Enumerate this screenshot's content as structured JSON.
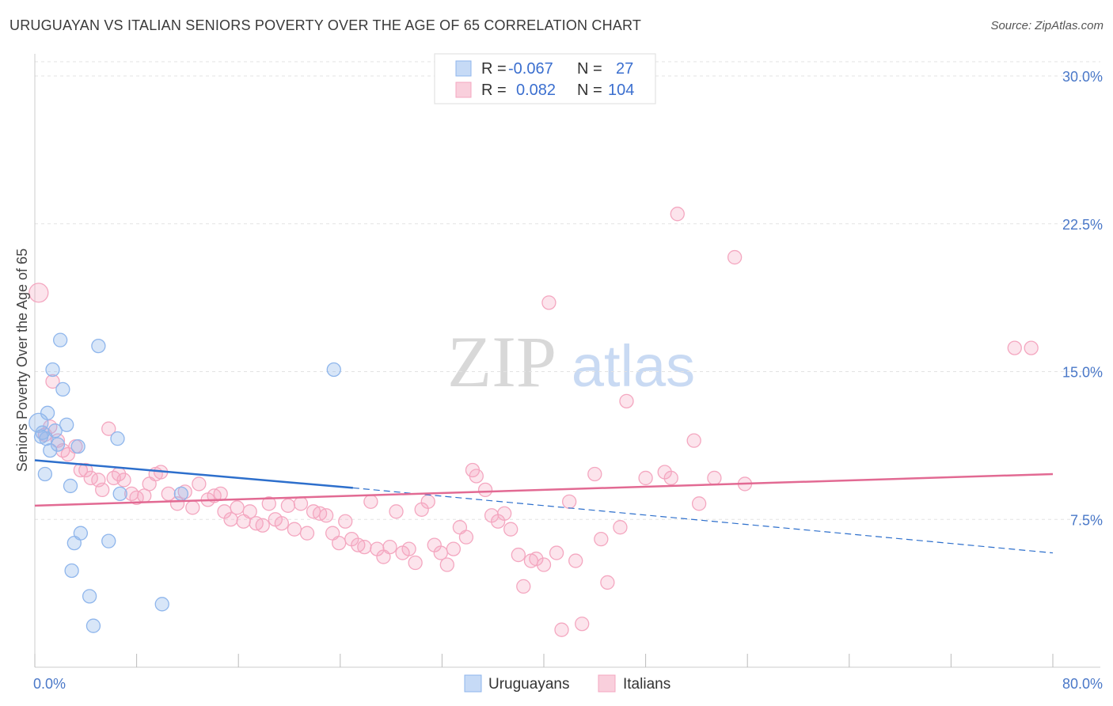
{
  "title": "URUGUAYAN VS ITALIAN SENIORS POVERTY OVER THE AGE OF 65 CORRELATION CHART",
  "source": "Source: ZipAtlas.com",
  "watermark": {
    "zip": "ZIP",
    "atlas": "atlas"
  },
  "chart_data": {
    "type": "scatter",
    "ylabel": "Seniors Poverty Over the Age of 65",
    "xlim": [
      0,
      80
    ],
    "ylim": [
      0,
      30
    ],
    "x_tick_labels": [
      "0.0%",
      "80.0%"
    ],
    "y_ticks": [
      7.5,
      15.0,
      22.5,
      30.0
    ],
    "y_tick_labels": [
      "7.5%",
      "15.0%",
      "22.5%",
      "30.0%"
    ],
    "grid": "horizontal dashed",
    "legend_position": "top-center",
    "series": [
      {
        "name": "Uruguayans",
        "color": "#8fb6ec",
        "line_color": "#2d6fcc",
        "R": "-0.067",
        "N": "27",
        "trend": {
          "x0": 0,
          "y0": 10.5,
          "x1": 25,
          "y1": 9.1,
          "dashed_to_x": 80,
          "dashed_to_y": 5.8
        },
        "points": [
          [
            0.3,
            12.4
          ],
          [
            0.5,
            11.7
          ],
          [
            0.6,
            11.9
          ],
          [
            0.8,
            9.8
          ],
          [
            1.0,
            12.9
          ],
          [
            1.2,
            11.0
          ],
          [
            1.4,
            15.1
          ],
          [
            1.6,
            12.0
          ],
          [
            1.8,
            11.3
          ],
          [
            2.0,
            16.6
          ],
          [
            2.2,
            14.1
          ],
          [
            2.5,
            12.3
          ],
          [
            2.8,
            9.2
          ],
          [
            3.1,
            6.3
          ],
          [
            3.4,
            11.2
          ],
          [
            3.6,
            6.8
          ],
          [
            2.9,
            4.9
          ],
          [
            4.3,
            3.6
          ],
          [
            4.6,
            2.1
          ],
          [
            5.0,
            16.3
          ],
          [
            5.8,
            6.4
          ],
          [
            6.5,
            11.6
          ],
          [
            6.7,
            8.8
          ],
          [
            10.0,
            3.2
          ],
          [
            11.5,
            8.8
          ],
          [
            23.5,
            15.1
          ],
          [
            0.9,
            11.6
          ]
        ]
      },
      {
        "name": "Italians",
        "color": "#f4a7c0",
        "line_color": "#e26a93",
        "R": "0.082",
        "N": "104",
        "trend": {
          "x0": 0,
          "y0": 8.2,
          "x1": 80,
          "y1": 9.8
        },
        "points": [
          [
            0.3,
            19.0
          ],
          [
            0.8,
            11.8
          ],
          [
            1.2,
            12.2
          ],
          [
            1.4,
            14.5
          ],
          [
            1.8,
            11.5
          ],
          [
            2.2,
            11.0
          ],
          [
            2.6,
            10.8
          ],
          [
            3.2,
            11.2
          ],
          [
            3.6,
            10.0
          ],
          [
            4.0,
            10.0
          ],
          [
            4.4,
            9.6
          ],
          [
            5.0,
            9.5
          ],
          [
            5.3,
            9.0
          ],
          [
            5.8,
            12.1
          ],
          [
            6.2,
            9.6
          ],
          [
            6.6,
            9.8
          ],
          [
            7.0,
            9.5
          ],
          [
            7.6,
            8.8
          ],
          [
            8.0,
            8.6
          ],
          [
            8.6,
            8.7
          ],
          [
            9.0,
            9.3
          ],
          [
            9.5,
            9.8
          ],
          [
            9.9,
            9.9
          ],
          [
            10.5,
            8.8
          ],
          [
            11.2,
            8.3
          ],
          [
            11.8,
            8.9
          ],
          [
            12.4,
            8.1
          ],
          [
            12.9,
            9.3
          ],
          [
            13.6,
            8.5
          ],
          [
            14.1,
            8.7
          ],
          [
            14.6,
            8.8
          ],
          [
            14.9,
            7.9
          ],
          [
            15.4,
            7.5
          ],
          [
            15.9,
            8.1
          ],
          [
            16.4,
            7.4
          ],
          [
            16.9,
            7.9
          ],
          [
            17.4,
            7.3
          ],
          [
            17.9,
            7.2
          ],
          [
            18.4,
            8.3
          ],
          [
            18.9,
            7.5
          ],
          [
            19.4,
            7.3
          ],
          [
            19.9,
            8.2
          ],
          [
            20.4,
            7.0
          ],
          [
            20.9,
            8.3
          ],
          [
            21.4,
            6.8
          ],
          [
            21.9,
            7.9
          ],
          [
            22.4,
            7.8
          ],
          [
            22.9,
            7.7
          ],
          [
            23.4,
            6.8
          ],
          [
            23.9,
            6.3
          ],
          [
            24.4,
            7.4
          ],
          [
            24.9,
            6.5
          ],
          [
            25.4,
            6.2
          ],
          [
            25.9,
            6.1
          ],
          [
            26.4,
            8.4
          ],
          [
            26.9,
            6.0
          ],
          [
            27.4,
            5.6
          ],
          [
            27.9,
            6.1
          ],
          [
            28.4,
            7.9
          ],
          [
            28.9,
            5.8
          ],
          [
            29.4,
            6.0
          ],
          [
            29.9,
            5.3
          ],
          [
            30.4,
            8.0
          ],
          [
            30.9,
            8.4
          ],
          [
            31.4,
            6.2
          ],
          [
            31.9,
            5.8
          ],
          [
            32.4,
            5.2
          ],
          [
            32.9,
            6.0
          ],
          [
            33.4,
            7.1
          ],
          [
            33.9,
            6.6
          ],
          [
            34.4,
            10.0
          ],
          [
            34.7,
            9.7
          ],
          [
            35.4,
            9.0
          ],
          [
            35.9,
            7.7
          ],
          [
            36.4,
            7.4
          ],
          [
            36.9,
            7.8
          ],
          [
            37.4,
            7.0
          ],
          [
            38.0,
            5.7
          ],
          [
            38.4,
            4.1
          ],
          [
            39.0,
            5.4
          ],
          [
            39.4,
            5.5
          ],
          [
            40.0,
            5.2
          ],
          [
            40.4,
            18.5
          ],
          [
            41.0,
            5.8
          ],
          [
            41.4,
            1.9
          ],
          [
            42.0,
            8.4
          ],
          [
            42.5,
            5.4
          ],
          [
            43.0,
            2.2
          ],
          [
            44.0,
            9.8
          ],
          [
            44.5,
            6.5
          ],
          [
            45.0,
            4.3
          ],
          [
            46.0,
            7.1
          ],
          [
            46.5,
            13.5
          ],
          [
            48.0,
            9.6
          ],
          [
            49.5,
            9.9
          ],
          [
            50.0,
            9.6
          ],
          [
            50.5,
            23.0
          ],
          [
            51.8,
            11.5
          ],
          [
            52.2,
            8.3
          ],
          [
            53.4,
            9.6
          ],
          [
            55.0,
            20.8
          ],
          [
            55.8,
            9.3
          ],
          [
            77.0,
            16.2
          ],
          [
            78.3,
            16.2
          ]
        ]
      }
    ]
  }
}
